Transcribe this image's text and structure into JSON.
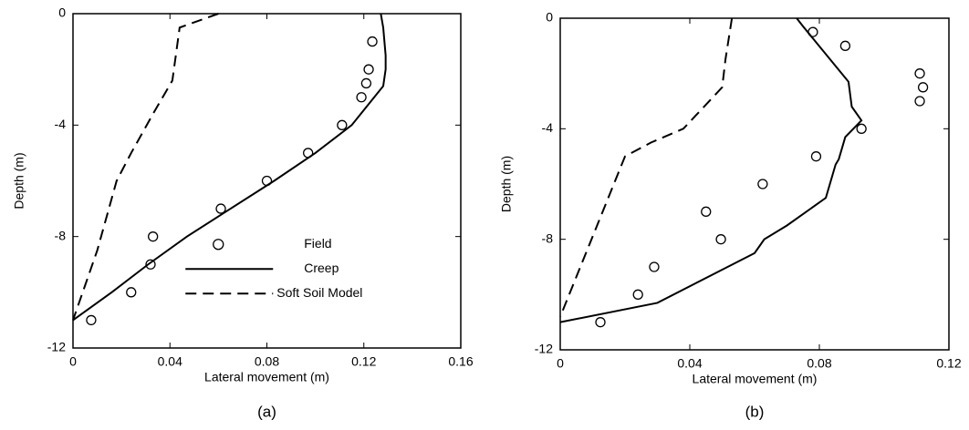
{
  "chart_data": [
    {
      "type": "line",
      "caption": "(a)",
      "xlabel": "Lateral movement (m)",
      "ylabel": "Depth (m)",
      "xlim": [
        0,
        0.16
      ],
      "ylim": [
        -12,
        0
      ],
      "xticks": [
        0,
        0.04,
        0.08,
        0.12,
        0.16
      ],
      "yticks": [
        0,
        -4,
        -8,
        -12
      ],
      "legend": "lower right",
      "series": [
        {
          "name": "Field",
          "style": "marker",
          "color": "#000000",
          "x": [
            0.1235,
            0.122,
            0.121,
            0.119,
            0.111,
            0.097,
            0.08,
            0.061,
            0.033,
            0.032,
            0.024,
            0.0075
          ],
          "values": [
            -1,
            -2,
            -2.5,
            -3,
            -4,
            -5,
            -6,
            -7,
            -8,
            -9,
            -10,
            -11
          ]
        },
        {
          "name": "Creep",
          "style": "solid",
          "color": "#000000",
          "x": [
            0.127,
            0.128,
            0.129,
            0.129,
            0.128,
            0.115,
            0.1,
            0.083,
            0.065,
            0.047,
            0.031,
            0.016,
            0
          ],
          "values": [
            0,
            -0.5,
            -1.5,
            -2,
            -2.6,
            -4,
            -5,
            -6,
            -7,
            -8,
            -9,
            -10,
            -11
          ]
        },
        {
          "name": "Soft Soil Model",
          "style": "dashed",
          "color": "#000000",
          "x": [
            0.06,
            0.044,
            0.041,
            0.033,
            0.024,
            0.018,
            0.01,
            0
          ],
          "values": [
            0,
            -0.5,
            -2.4,
            -3.6,
            -5,
            -6,
            -8.5,
            -11
          ]
        }
      ]
    },
    {
      "type": "line",
      "caption": "(b)",
      "xlabel": "Lateral movement (m)",
      "ylabel": "Depth (m)",
      "xlim": [
        0,
        0.12
      ],
      "ylim": [
        -12,
        0
      ],
      "xticks": [
        0,
        0.04,
        0.08,
        0.12
      ],
      "yticks": [
        0,
        -4,
        -8,
        -12
      ],
      "series": [
        {
          "style": "marker",
          "color": "#000000",
          "x": [
            0.078,
            0.088,
            0.111,
            0.112,
            0.111,
            0.093,
            0.079,
            0.0625,
            0.045,
            0.0496,
            0.029,
            0.024,
            0.0124
          ],
          "values": [
            -0.5,
            -1,
            -2,
            -2.5,
            -3,
            -4,
            -5,
            -6,
            -7,
            -8,
            -9,
            -10,
            -11
          ]
        },
        {
          "style": "solid",
          "color": "#000000",
          "x": [
            0.073,
            0.075,
            0.089,
            0.09,
            0.093,
            0.088,
            0.086,
            0.085,
            0.082,
            0.07,
            0.063,
            0.06,
            0.03,
            0
          ],
          "values": [
            0,
            -0.3,
            -2.3,
            -3.2,
            -3.7,
            -4.3,
            -5.1,
            -5.3,
            -6.5,
            -7.5,
            -8,
            -8.5,
            -10.3,
            -11
          ]
        },
        {
          "style": "dashed",
          "color": "#000000",
          "x": [
            0.053,
            0.051,
            0.05,
            0.038,
            0.028,
            0.02,
            0
          ],
          "values": [
            0,
            -1.5,
            -2.5,
            -4,
            -4.5,
            -5,
            -10.8
          ]
        }
      ]
    }
  ]
}
